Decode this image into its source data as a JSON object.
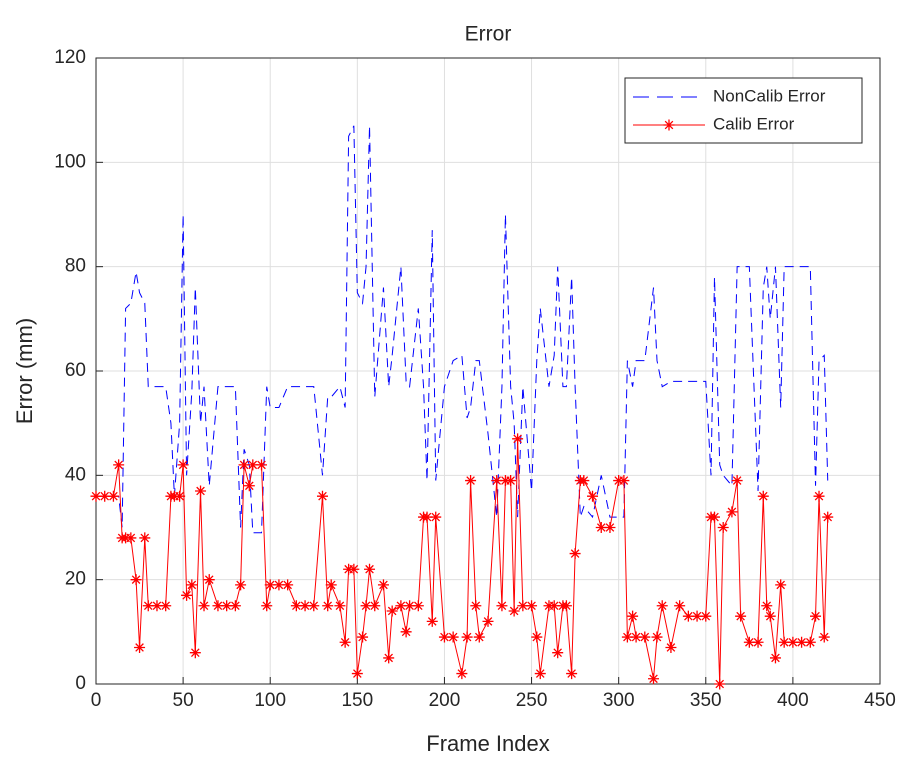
{
  "chart_data": {
    "type": "line",
    "title": "Error",
    "x_label": "Frame Index",
    "y_label": "Error (mm)",
    "x": [
      0,
      5,
      10,
      13,
      15,
      17,
      20,
      23,
      25,
      28,
      30,
      35,
      40,
      43,
      45,
      48,
      50,
      52,
      55,
      57,
      60,
      62,
      65,
      70,
      75,
      80,
      83,
      85,
      88,
      90,
      95,
      98,
      100,
      105,
      110,
      115,
      120,
      125,
      130,
      133,
      135,
      140,
      143,
      145,
      148,
      150,
      153,
      155,
      157,
      160,
      165,
      168,
      170,
      175,
      178,
      180,
      185,
      188,
      190,
      193,
      195,
      200,
      205,
      210,
      213,
      215,
      218,
      220,
      225,
      230,
      233,
      235,
      238,
      240,
      242,
      245,
      250,
      253,
      255,
      260,
      263,
      265,
      268,
      270,
      273,
      275,
      278,
      280,
      285,
      290,
      295,
      300,
      303,
      305,
      308,
      310,
      315,
      320,
      322,
      325,
      330,
      335,
      340,
      345,
      350,
      353,
      355,
      358,
      360,
      365,
      368,
      370,
      375,
      380,
      383,
      385,
      387,
      390,
      393,
      395,
      400,
      405,
      410,
      413,
      415,
      418,
      420
    ],
    "series": [
      {
        "name": "NonCalib Error",
        "color": "#0000ff",
        "line_style": "dashed",
        "marker": "none",
        "values": [
          36,
          36,
          36,
          36,
          30,
          72,
          73,
          79,
          75,
          73,
          57,
          57,
          57,
          50,
          36,
          50,
          90,
          40,
          56,
          76,
          50,
          57,
          38,
          57,
          57,
          57,
          30,
          45,
          42,
          29,
          29,
          57,
          53,
          53,
          57,
          57,
          57,
          57,
          40,
          55,
          55,
          57,
          53,
          105,
          107,
          75,
          73,
          80,
          107,
          55,
          76,
          57,
          63,
          80,
          58,
          57,
          72,
          57,
          39,
          87,
          39,
          57,
          62,
          63,
          51,
          53,
          62,
          62,
          48,
          32,
          57,
          90,
          57,
          50,
          32,
          57,
          37,
          62,
          72,
          57,
          63,
          80,
          57,
          57,
          78,
          57,
          32,
          34,
          32,
          40,
          32,
          32,
          32,
          62,
          57,
          62,
          62,
          76,
          62,
          57,
          58,
          58,
          58,
          58,
          58,
          40,
          78,
          42,
          40,
          38,
          80,
          80,
          80,
          37,
          76,
          80,
          70,
          80,
          53,
          80,
          80,
          80,
          80,
          38,
          62,
          63,
          39
        ]
      },
      {
        "name": "Calib Error",
        "color": "#ff0000",
        "line_style": "solid",
        "marker": "*",
        "values": [
          36,
          36,
          36,
          42,
          28,
          28,
          28,
          20,
          7,
          28,
          15,
          15,
          15,
          36,
          36,
          36,
          42,
          17,
          19,
          6,
          37,
          15,
          20,
          15,
          15,
          15,
          19,
          42,
          38,
          42,
          42,
          15,
          19,
          19,
          19,
          15,
          15,
          15,
          36,
          15,
          19,
          15,
          8,
          22,
          22,
          2,
          9,
          15,
          22,
          15,
          19,
          5,
          14,
          15,
          10,
          15,
          15,
          32,
          32,
          12,
          32,
          9,
          9,
          2,
          9,
          39,
          15,
          9,
          12,
          39,
          15,
          39,
          39,
          14,
          47,
          15,
          15,
          9,
          2,
          15,
          15,
          6,
          15,
          15,
          2,
          25,
          39,
          39,
          36,
          30,
          30,
          39,
          39,
          9,
          13,
          9,
          9,
          1,
          9,
          15,
          7,
          15,
          13,
          13,
          13,
          32,
          32,
          0,
          30,
          33,
          39,
          13,
          8,
          8,
          36,
          15,
          13,
          5,
          19,
          8,
          8,
          8,
          8,
          13,
          36,
          9,
          32
        ]
      }
    ],
    "xlim": [
      0,
      450
    ],
    "xticks": [
      0,
      50,
      100,
      150,
      200,
      250,
      300,
      350,
      400,
      450
    ],
    "ylim": [
      0,
      120
    ],
    "yticks": [
      0,
      20,
      40,
      60,
      80,
      100,
      120
    ],
    "grid": true,
    "legend": "upper right"
  }
}
